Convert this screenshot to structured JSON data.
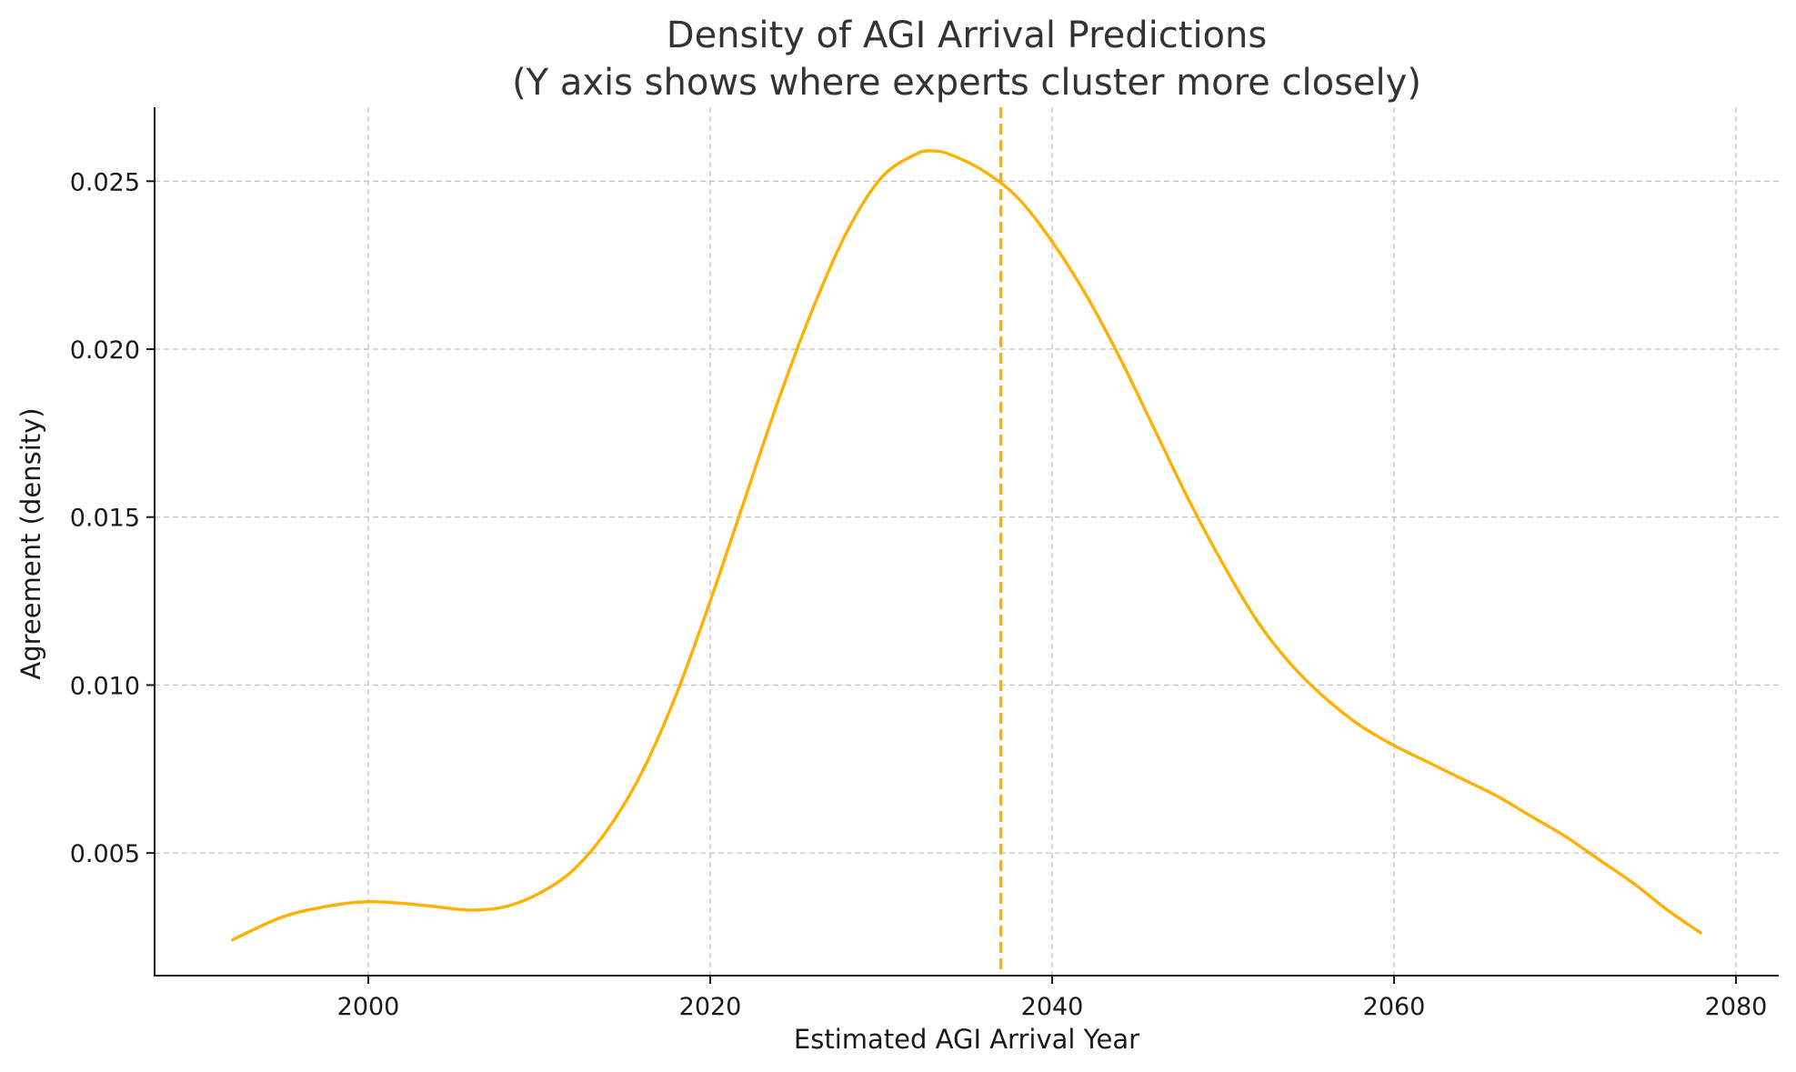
{
  "chart_data": {
    "type": "line",
    "title": "Density of AGI Arrival Predictions",
    "subtitle": "(Y axis shows where experts cluster more closely)",
    "xlabel": "Estimated AGI Arrival Year",
    "ylabel": "Agreement (density)",
    "xlim": [
      1987.5,
      2082.5
    ],
    "ylim": [
      0.00135,
      0.0272
    ],
    "x_ticks": [
      2000,
      2020,
      2040,
      2060,
      2080
    ],
    "y_ticks": [
      0.005,
      0.01,
      0.015,
      0.02,
      0.025
    ],
    "x_tick_labels": [
      "2000",
      "2020",
      "2040",
      "2060",
      "2080"
    ],
    "y_tick_labels": [
      "0.005",
      "0.010",
      "0.015",
      "0.020",
      "0.025"
    ],
    "grid": true,
    "series": [
      {
        "color": "#FFB000",
        "x": [
          1992,
          1995,
          1998,
          2000,
          2002,
          2004,
          2006,
          2008,
          2010,
          2012,
          2014,
          2016,
          2018,
          2020,
          2022,
          2024,
          2026,
          2028,
          2030,
          2032,
          2033,
          2034,
          2036,
          2038,
          2040,
          2042,
          2044,
          2046,
          2048,
          2050,
          2052,
          2054,
          2056,
          2058,
          2060,
          2062,
          2064,
          2066,
          2068,
          2070,
          2072,
          2074,
          2076,
          2078
        ],
        "y": [
          0.0024,
          0.0031,
          0.00345,
          0.00355,
          0.0035,
          0.0034,
          0.0033,
          0.0034,
          0.0038,
          0.0045,
          0.0057,
          0.0074,
          0.0097,
          0.0125,
          0.0155,
          0.0185,
          0.0212,
          0.0235,
          0.0251,
          0.0258,
          0.0259,
          0.0258,
          0.0253,
          0.0245,
          0.0232,
          0.0216,
          0.0197,
          0.0176,
          0.0155,
          0.0136,
          0.0119,
          0.0106,
          0.0096,
          0.0088,
          0.0082,
          0.0077,
          0.0072,
          0.0067,
          0.0061,
          0.0055,
          0.0048,
          0.0041,
          0.0033,
          0.0026
        ]
      }
    ],
    "reference_line": {
      "orientation": "vertical",
      "x": 2037,
      "style": "dashed",
      "color": "#FFB000"
    }
  }
}
